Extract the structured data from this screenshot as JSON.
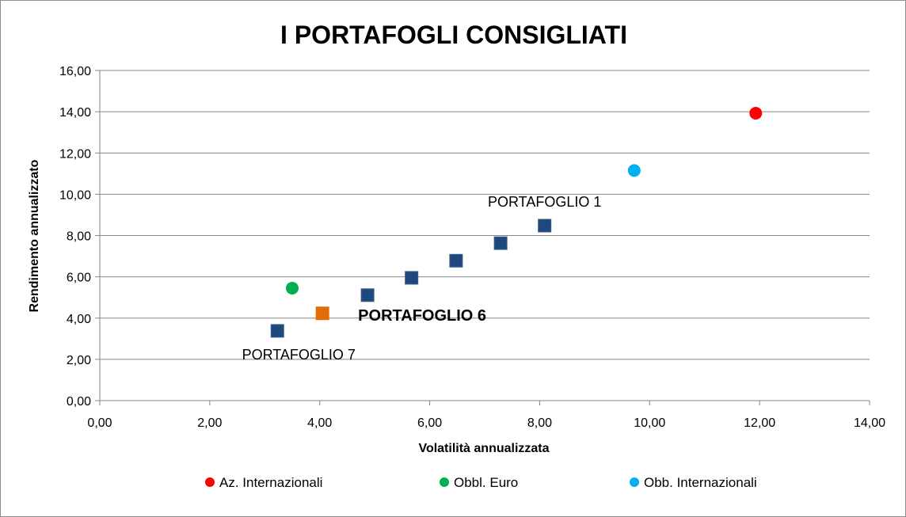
{
  "chart_data": {
    "type": "scatter",
    "title": "I PORTAFOGLI CONSIGLIATI",
    "xlabel": "Volatilità annualizzata",
    "ylabel": "Rendimento annualizzato",
    "xlim": [
      0,
      14
    ],
    "ylim": [
      0,
      16
    ],
    "x_ticks": [
      "0,00",
      "2,00",
      "4,00",
      "6,00",
      "8,00",
      "10,00",
      "12,00",
      "14,00"
    ],
    "y_ticks": [
      "0,00",
      "2,00",
      "4,00",
      "6,00",
      "8,00",
      "10,00",
      "12,00",
      "14,00",
      "16,00"
    ],
    "grid": "horizontal",
    "legend_position": "bottom",
    "series": [
      {
        "name": "Az. Internazionali",
        "marker": "circle",
        "color": "#ff0000",
        "points": [
          {
            "x": 11.93,
            "y": 13.93
          }
        ]
      },
      {
        "name": "Obbl. Euro",
        "marker": "circle",
        "color": "#00b050",
        "points": [
          {
            "x": 3.5,
            "y": 5.45
          }
        ]
      },
      {
        "name": "Obb. Internazionali",
        "marker": "circle",
        "color": "#00b0f0",
        "points": [
          {
            "x": 9.72,
            "y": 11.15
          }
        ]
      },
      {
        "marker": "square",
        "color": "#1f497d",
        "points": [
          {
            "x": 3.23,
            "y": 3.38
          },
          {
            "x": 4.87,
            "y": 5.11
          },
          {
            "x": 5.67,
            "y": 5.95
          },
          {
            "x": 6.48,
            "y": 6.78
          },
          {
            "x": 7.29,
            "y": 7.63
          },
          {
            "x": 8.09,
            "y": 8.48
          }
        ]
      },
      {
        "marker": "square",
        "color": "#e36c09",
        "points": [
          {
            "x": 4.05,
            "y": 4.23
          }
        ]
      }
    ],
    "annotations": [
      {
        "text": "PORTAFOGLIO 1",
        "x": 8.09,
        "y": 8.48,
        "placement": "above",
        "color": "#000000",
        "style": "normal"
      },
      {
        "text": "PORTAFOGLIO 6",
        "x": 4.05,
        "y": 4.23,
        "placement": "right",
        "color": "#e36c09",
        "style": "bold"
      },
      {
        "text": "PORTAFOGLIO 7",
        "x": 3.23,
        "y": 3.38,
        "placement": "below",
        "color": "#000000",
        "style": "normal"
      }
    ]
  }
}
